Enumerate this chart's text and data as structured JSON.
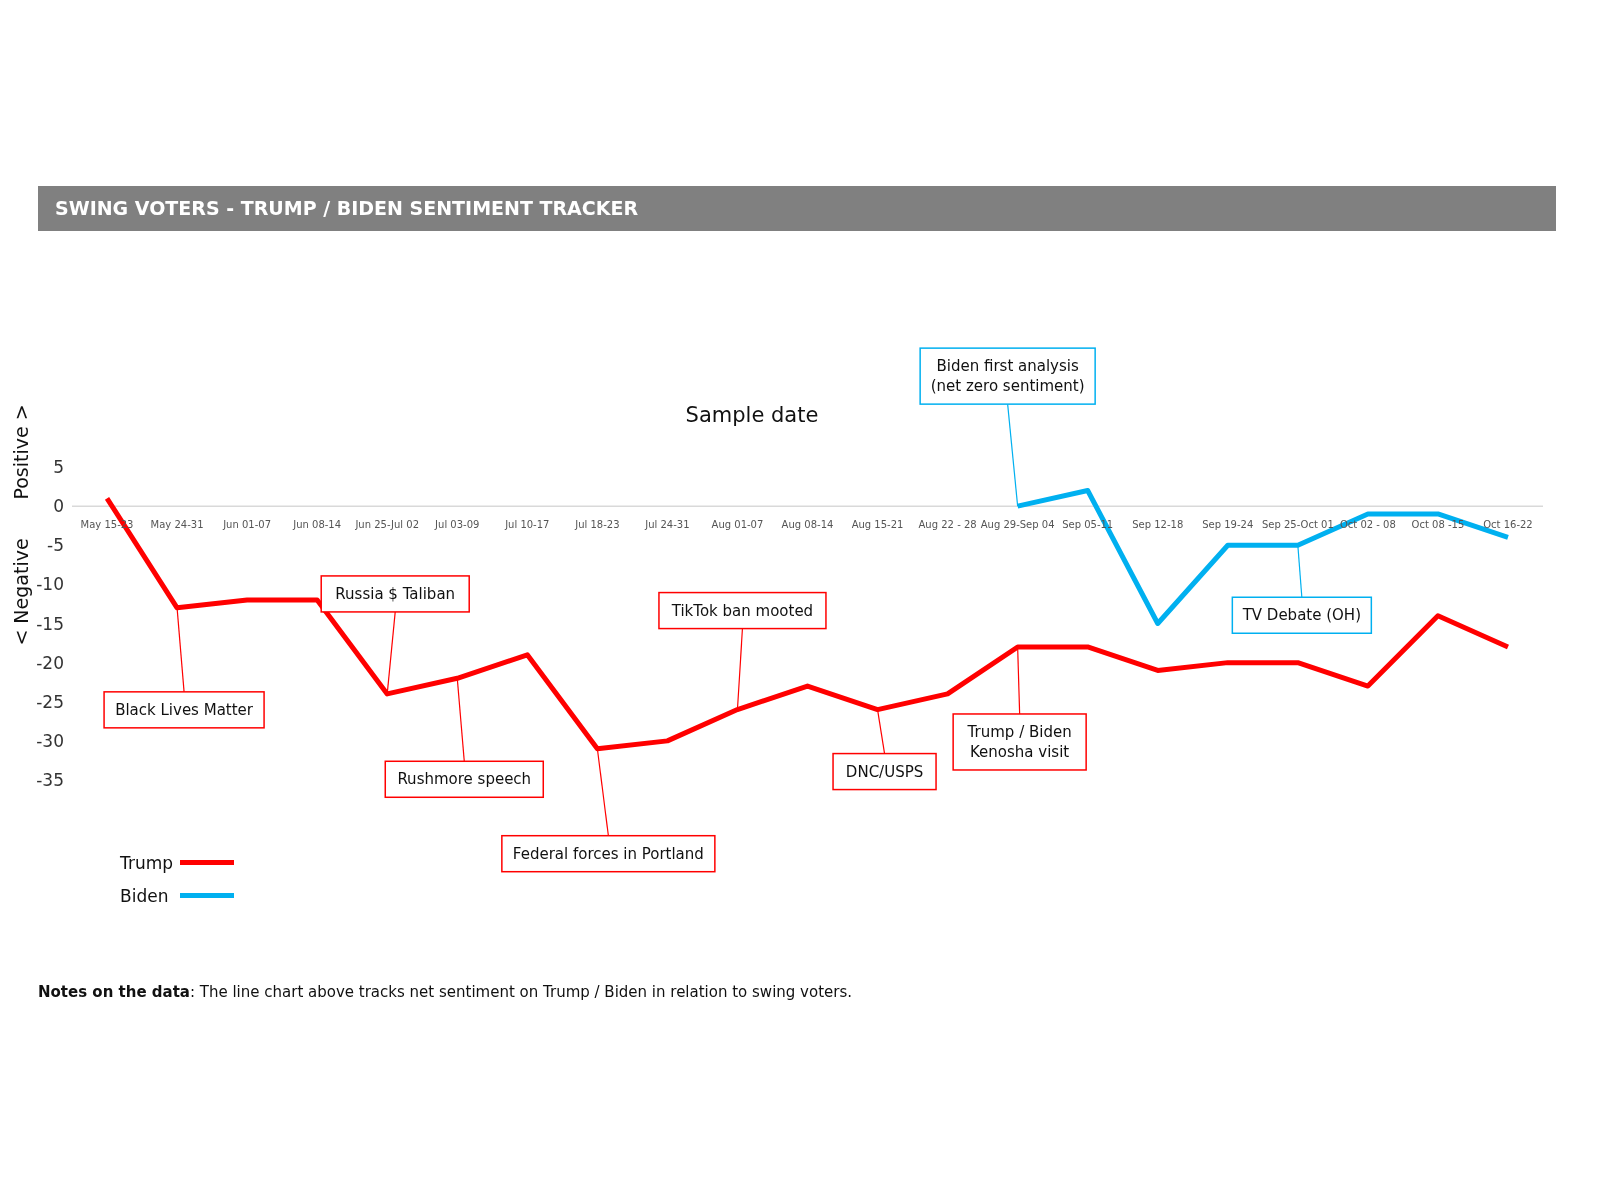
{
  "chart_data": {
    "type": "line",
    "title": "SWING VOTERS - TRUMP / BIDEN SENTIMENT TRACKER",
    "xlabel": "Sample date",
    "categories": [
      "May 15-23",
      "May 24-31",
      "Jun 01-07",
      "Jun 08-14",
      "Jun 25-Jul 02",
      "Jul 03-09",
      "Jul 10-17",
      "Jul 18-23",
      "Jul 24-31",
      "Aug 01-07",
      "Aug 08-14",
      "Aug 15-21",
      "Aug 22 - 28",
      "Aug 29-Sep 04",
      "Sep 05-11",
      "Sep 12-18",
      "Sep 19-24",
      "Sep 25-Oct 01",
      "Oct 02 - 08",
      "Oct 08 -15",
      "Oct 16-22"
    ],
    "series": [
      {
        "name": "Trump",
        "color": "#ff0000",
        "values": [
          1,
          -13,
          -12,
          -12,
          -24,
          -22,
          -19,
          -31,
          -30,
          -26,
          -23,
          -26,
          -24,
          -18,
          -18,
          -21,
          -20,
          -20,
          -23,
          -14,
          -18
        ]
      },
      {
        "name": "Biden",
        "color": "#00b0f0",
        "values": [
          null,
          null,
          null,
          null,
          null,
          null,
          null,
          null,
          null,
          null,
          null,
          null,
          null,
          0,
          2,
          -15,
          -5,
          -5,
          -1,
          -1,
          -4
        ]
      }
    ],
    "ylim": [
      -35,
      5
    ],
    "yticks": [
      5,
      0,
      -5,
      -10,
      -15,
      -20,
      -25,
      -30,
      -35
    ],
    "grid": false,
    "legend": "bottom left",
    "marker": "none",
    "line_style": "solid",
    "annotations": [
      {
        "text": "Black Lives Matter",
        "x": "May 24-31",
        "y": -13
      },
      {
        "text": "Russia $ Taliban",
        "x": "Jun 25-Jul 02",
        "y": -24
      },
      {
        "text": "Rushmore speech",
        "x": "Jul 03-09",
        "y": -22
      },
      {
        "text": "Federal forces in Portland",
        "x": "Jul 18-23",
        "y": -31
      },
      {
        "text": "TikTok ban mooted",
        "x": "Aug 01-07",
        "y": -26
      },
      {
        "text": "DNC/USPS",
        "x": "Aug 15-21",
        "y": -26
      },
      {
        "text": "Trump / Biden Kenosha visit",
        "x": "Aug 29-Sep 04",
        "y": -18
      },
      {
        "text": "Biden first analysis (net zero sentiment)",
        "x": "Aug 29-Sep 04",
        "y": 0
      },
      {
        "text": "TV Debate (OH)",
        "x": "Sep 25-Oct 01",
        "y": -5
      },
      "Positive >",
      "< Negative",
      "Notes on the data: The line chart above tracks net sentiment on Trump / Biden in relation to swing voters."
    ]
  }
}
